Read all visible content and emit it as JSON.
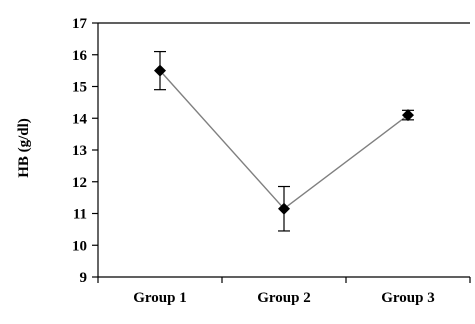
{
  "chart_data": {
    "type": "line",
    "title": "",
    "xlabel": "",
    "ylabel": "HB (g/dl)",
    "categories": [
      "Group 1",
      "Group 2",
      "Group 3"
    ],
    "series": [
      {
        "values": [
          15.5,
          11.15,
          14.1
        ],
        "error": [
          0.6,
          0.7,
          0.15
        ],
        "marker": "diamond",
        "color": "#000000",
        "line_color": "#808080"
      }
    ],
    "ylim": [
      9,
      17
    ],
    "yticks": [
      9,
      10,
      11,
      12,
      13,
      14,
      15,
      16,
      17
    ],
    "grid": false
  }
}
